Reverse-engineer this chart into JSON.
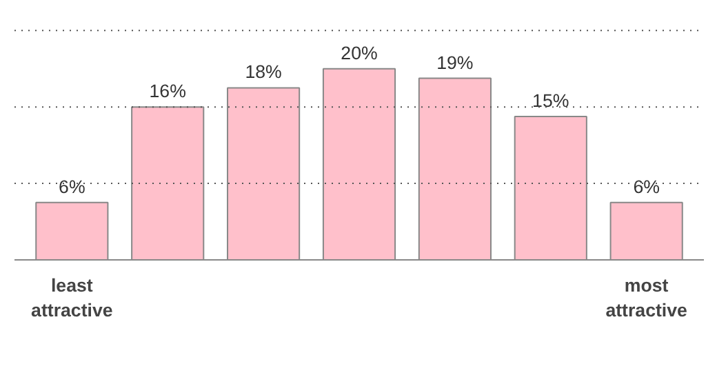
{
  "chart_data": {
    "type": "bar",
    "categories": [
      "least attractive",
      null,
      null,
      null,
      null,
      null,
      "most attractive"
    ],
    "values": [
      6,
      16,
      18,
      20,
      19,
      15,
      6
    ],
    "value_labels": [
      "6%",
      "16%",
      "18%",
      "20%",
      "19%",
      "15%",
      "6%"
    ],
    "color": "#ffc0cb",
    "ref_lines": [
      {
        "axis": "y",
        "value": 8,
        "color": "#555555",
        "line_style": "dotted"
      },
      {
        "axis": "y",
        "value": 16,
        "color": "#555555",
        "line_style": "dotted"
      },
      {
        "axis": "y",
        "value": 24,
        "color": "#555555",
        "line_style": "dotted"
      }
    ],
    "tick_labels": "x"
  }
}
